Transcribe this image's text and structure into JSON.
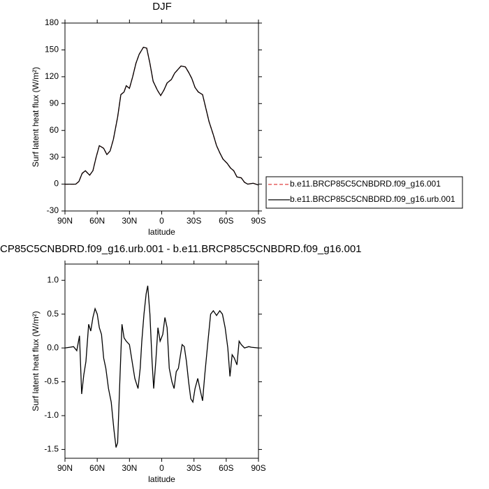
{
  "chart_data": [
    {
      "type": "line",
      "title": "DJF",
      "ylabel": "Surf latent heat flux (W/m²)",
      "xlabel": "latitude",
      "x": [
        90,
        85,
        80,
        77,
        74,
        71,
        67,
        64,
        61,
        58,
        54,
        51,
        48,
        45,
        41,
        38,
        35,
        33,
        30,
        27,
        24,
        21,
        17,
        14,
        11,
        8,
        4,
        1,
        -2,
        -5,
        -9,
        -12,
        -15,
        -18,
        -22,
        -25,
        -28,
        -31,
        -34,
        -38,
        -41,
        -44,
        -48,
        -51,
        -54,
        -57,
        -61,
        -64,
        -67,
        -70,
        -74,
        -77,
        -80,
        -85,
        -90
      ],
      "series": [
        {
          "name": "b.e11.BRCP85C5CNBDRD.f09_g16.001",
          "color": "#e04040",
          "line_style": "dashed",
          "values": [
            0,
            0,
            0,
            3,
            12,
            15,
            10,
            15,
            30,
            43,
            40,
            33,
            37,
            50,
            75,
            100,
            103,
            110,
            107,
            120,
            135,
            145,
            153,
            152,
            135,
            115,
            105,
            99,
            105,
            113,
            117,
            124,
            128,
            132,
            131,
            125,
            118,
            108,
            103,
            100,
            85,
            70,
            55,
            43,
            35,
            28,
            23,
            18,
            15,
            8,
            7,
            2,
            0,
            1,
            -1
          ]
        },
        {
          "name": "b.e11.BRCP85C5CNBDRD.f09_g16.urb.001",
          "color": "#000000",
          "line_style": "solid",
          "values": [
            0,
            0,
            0,
            3,
            12,
            15,
            10,
            15,
            30,
            43,
            40,
            33,
            37,
            50,
            75,
            100,
            103,
            110,
            107,
            120,
            135,
            145,
            153,
            152,
            135,
            115,
            105,
            99,
            105,
            113,
            117,
            124,
            128,
            132,
            131,
            125,
            118,
            108,
            103,
            100,
            85,
            70,
            55,
            43,
            35,
            28,
            23,
            18,
            15,
            8,
            7,
            2,
            0,
            1,
            -1
          ]
        }
      ],
      "xlim": [
        90,
        -90
      ],
      "xticks": [
        {
          "value": 90,
          "label": "90N"
        },
        {
          "value": 60,
          "label": "60N"
        },
        {
          "value": 30,
          "label": "30N"
        },
        0,
        {
          "value": -30,
          "label": "30S"
        },
        {
          "value": -60,
          "label": "60S"
        },
        {
          "value": -90,
          "label": "90S"
        }
      ],
      "ylim": [
        -30,
        180
      ],
      "yticks": [
        -30,
        0,
        30,
        60,
        90,
        120,
        150,
        180
      ],
      "legend": "right"
    },
    {
      "type": "line",
      "title": "CP85C5CNBDRD.f09_g16.urb.001 - b.e11.BRCP85C5CNBDRD.f09_g16.001",
      "ylabel": "Surf latent heat flux (W/m²)",
      "xlabel": "latitude",
      "x": [
        90,
        85.5,
        82,
        79,
        76.5,
        74.5,
        72.5,
        70.5,
        68,
        66,
        64,
        62,
        60,
        58,
        56,
        54,
        52,
        49.5,
        47,
        44.5,
        42.5,
        41,
        39,
        37,
        35,
        33,
        30,
        27,
        25,
        22,
        20,
        18.5,
        16.5,
        14.5,
        13,
        11,
        9,
        7.5,
        5.5,
        3.5,
        1.5,
        -1,
        -3,
        -5,
        -7,
        -9.5,
        -11.5,
        -13.5,
        -15.5,
        -17.5,
        -19,
        -21,
        -23,
        -25,
        -27,
        -29,
        -31,
        -33.5,
        -35.5,
        -38,
        -40,
        -43,
        -45.5,
        -48,
        -51,
        -54,
        -56.5,
        -59,
        -61.5,
        -63.5,
        -65.5,
        -67.5,
        -70,
        -72,
        -74,
        -77,
        -81,
        -83.5,
        -90
      ],
      "series": [
        {
          "color": "#000000",
          "line_style": "solid",
          "values": [
            0,
            0.01,
            0.02,
            -0.04,
            0.18,
            -0.68,
            -0.4,
            -0.2,
            0.35,
            0.25,
            0.45,
            0.58,
            0.5,
            0.3,
            0.2,
            -0.15,
            -0.3,
            -0.6,
            -0.8,
            -1.2,
            -1.47,
            -1.4,
            -0.5,
            0.35,
            0.15,
            0.1,
            0.05,
            -0.25,
            -0.45,
            -0.6,
            -0.3,
            0.1,
            0.5,
            0.8,
            0.92,
            0.5,
            -0.2,
            -0.6,
            -0.2,
            0.3,
            0.1,
            0.2,
            0.45,
            0.3,
            -0.3,
            -0.5,
            -0.6,
            -0.35,
            -0.3,
            -0.1,
            0.05,
            0.02,
            -0.2,
            -0.5,
            -0.75,
            -0.8,
            -0.6,
            -0.45,
            -0.6,
            -0.78,
            -0.4,
            0.1,
            0.5,
            0.55,
            0.48,
            0.55,
            0.5,
            0.3,
            0,
            -0.42,
            -0.1,
            -0.15,
            -0.25,
            0.1,
            0.05,
            0,
            0.02,
            0.01,
            0
          ]
        }
      ],
      "xlim": [
        90,
        -90
      ],
      "xticks": [
        {
          "value": 90,
          "label": "90N"
        },
        {
          "value": 60,
          "label": "60N"
        },
        {
          "value": 30,
          "label": "30N"
        },
        0,
        {
          "value": -30,
          "label": "30S"
        },
        {
          "value": -60,
          "label": "60S"
        },
        {
          "value": -90,
          "label": "90S"
        }
      ],
      "ylim": [
        -1.63,
        1.24
      ],
      "yticks": [
        -1.5,
        {
          "value": -1,
          "label": "-1.0"
        },
        -0.5,
        {
          "value": 0,
          "label": "0.0"
        },
        0.5,
        {
          "value": 1,
          "label": "1.0"
        }
      ]
    }
  ]
}
